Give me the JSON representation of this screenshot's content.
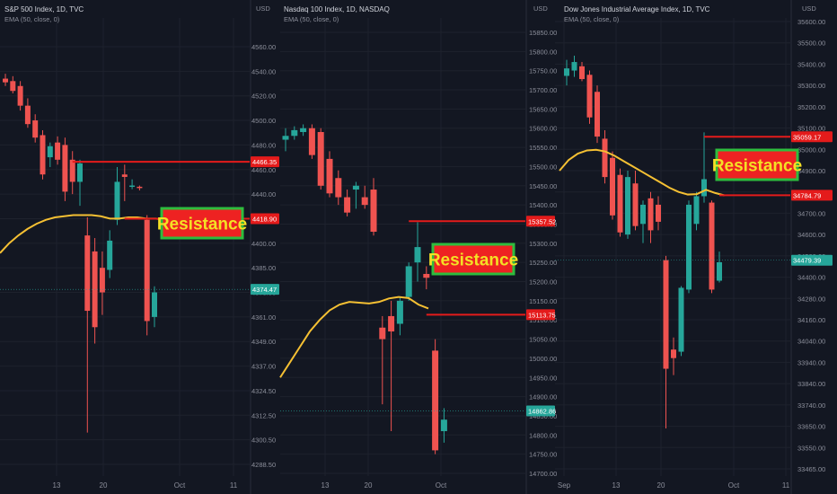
{
  "colors": {
    "background": "#131722",
    "grid": "#1e222d",
    "axis_text": "#8c8f9b",
    "header_text": "#d1d4dc",
    "up": "#26a69a",
    "down": "#ef5350",
    "ema": "#f5c033",
    "level": "#e41b1b",
    "badge_green": "#2ebd3e",
    "badge_red": "#ee2222",
    "badge_text": "#f4e025",
    "separator": "#2a2e39"
  },
  "chart_data": [
    {
      "type": "candlestick",
      "title": "S&P 500 Index, 1D, TVC",
      "indicator": "EMA (50, close, 0)",
      "currency": "USD",
      "y_ticks": [
        "4560.00",
        "4540.00",
        "4520.00",
        "4500.00",
        "4480.00",
        "4460.00",
        "4440.00",
        "4418.90",
        "4400.00",
        "4385.00",
        "4373.00",
        "4361.00",
        "4349.00",
        "4337.00",
        "4324.50",
        "4312.50",
        "4300.50",
        "4288.50"
      ],
      "x_ticks": [
        "13",
        "20",
        "Oct",
        "11"
      ],
      "candles": [
        {
          "o": 4534,
          "h": 4538,
          "l": 4528,
          "c": 4531
        },
        {
          "o": 4532,
          "h": 4536,
          "l": 4522,
          "c": 4524
        },
        {
          "o": 4528,
          "h": 4532,
          "l": 4508,
          "c": 4512
        },
        {
          "o": 4512,
          "h": 4518,
          "l": 4494,
          "c": 4497
        },
        {
          "o": 4500,
          "h": 4505,
          "l": 4482,
          "c": 4486
        },
        {
          "o": 4488,
          "h": 4492,
          "l": 4452,
          "c": 4456
        },
        {
          "o": 4470,
          "h": 4482,
          "l": 4462,
          "c": 4479
        },
        {
          "o": 4482,
          "h": 4487,
          "l": 4464,
          "c": 4468
        },
        {
          "o": 4480,
          "h": 4486,
          "l": 4434,
          "c": 4442
        },
        {
          "o": 4468,
          "h": 4475,
          "l": 4440,
          "c": 4450
        },
        {
          "o": 4450,
          "h": 4468,
          "l": 4430,
          "c": 4465
        },
        {
          "o": 4406,
          "h": 4420,
          "l": 4304,
          "c": 4364
        },
        {
          "o": 4395,
          "h": 4404,
          "l": 4348,
          "c": 4356
        },
        {
          "o": 4385,
          "h": 4395,
          "l": 4362,
          "c": 4373
        },
        {
          "o": 4384,
          "h": 4410,
          "l": 4380,
          "c": 4402
        },
        {
          "o": 4418,
          "h": 4462,
          "l": 4414,
          "c": 4450
        },
        {
          "o": 4456,
          "h": 4464,
          "l": 4434,
          "c": 4454
        },
        {
          "o": 4446,
          "h": 4452,
          "l": 4444,
          "c": 4447
        },
        {
          "o": 4446,
          "h": 4447,
          "l": 4443,
          "c": 4445
        },
        {
          "o": 4418,
          "h": 4422,
          "l": 4352,
          "c": 4359
        },
        {
          "o": 4361,
          "h": 4376,
          "l": 4356,
          "c": 4373
        }
      ],
      "ema": [
        4394,
        4400,
        4406,
        4411,
        4415,
        4418,
        4420,
        4421,
        4422,
        4422,
        4422,
        4421,
        4419,
        4419,
        4420,
        4420,
        4419,
        4419,
        4418
      ],
      "levels": [
        {
          "label": "4466.35",
          "value": 4466.35,
          "from": 9
        },
        {
          "label": "4418.90",
          "value": 4418.9,
          "from": 16
        }
      ],
      "last_price": {
        "label": "4374.47",
        "value": 4374.47
      },
      "annotation": "Resistance"
    },
    {
      "type": "candlestick",
      "title": "Nasdaq 100 Index, 1D, NASDAQ",
      "indicator": "EMA (50, close, 0)",
      "currency": "USD",
      "y_ticks": [
        "15850.00",
        "15800.00",
        "15750.00",
        "15700.00",
        "15650.00",
        "15600.00",
        "15550.00",
        "15500.00",
        "15450.00",
        "15400.00",
        "15350.00",
        "15300.00",
        "15250.00",
        "15200.00",
        "15150.00",
        "15100.00",
        "15050.00",
        "15000.00",
        "14950.00",
        "14900.00",
        "14850.00",
        "14800.00",
        "14750.00",
        "14700.00"
      ],
      "x_ticks": [
        "13",
        "20",
        "Oct"
      ],
      "candles": [
        {
          "o": 15570,
          "h": 15600,
          "l": 15540,
          "c": 15580
        },
        {
          "o": 15580,
          "h": 15605,
          "l": 15570,
          "c": 15595
        },
        {
          "o": 15590,
          "h": 15610,
          "l": 15580,
          "c": 15600
        },
        {
          "o": 15600,
          "h": 15610,
          "l": 15520,
          "c": 15530
        },
        {
          "o": 15590,
          "h": 15600,
          "l": 15440,
          "c": 15450
        },
        {
          "o": 15520,
          "h": 15540,
          "l": 15420,
          "c": 15430
        },
        {
          "o": 15470,
          "h": 15490,
          "l": 15400,
          "c": 15420
        },
        {
          "o": 15420,
          "h": 15440,
          "l": 15370,
          "c": 15380
        },
        {
          "o": 15440,
          "h": 15460,
          "l": 15390,
          "c": 15450
        },
        {
          "o": 15420,
          "h": 15450,
          "l": 15390,
          "c": 15400
        },
        {
          "o": 15440,
          "h": 15470,
          "l": 15320,
          "c": 15330
        },
        {
          "o": 15080,
          "h": 15110,
          "l": 14880,
          "c": 15050
        },
        {
          "o": 15110,
          "h": 15150,
          "l": 14810,
          "c": 15070
        },
        {
          "o": 15090,
          "h": 15160,
          "l": 15060,
          "c": 15150
        },
        {
          "o": 15160,
          "h": 15250,
          "l": 15150,
          "c": 15240
        },
        {
          "o": 15250,
          "h": 15355,
          "l": 15200,
          "c": 15290
        },
        {
          "o": 15220,
          "h": 15240,
          "l": 15180,
          "c": 15210
        },
        {
          "o": 15020,
          "h": 15050,
          "l": 14750,
          "c": 14760
        },
        {
          "o": 14810,
          "h": 14870,
          "l": 14780,
          "c": 14840
        }
      ],
      "ema": [
        14950,
        14990,
        15030,
        15070,
        15100,
        15125,
        15140,
        15147,
        15145,
        15143,
        15147,
        15156,
        15160,
        15157,
        15140,
        15130
      ],
      "levels": [
        {
          "label": "15357.52",
          "value": 15357.52,
          "from": 14
        },
        {
          "label": "15113.75",
          "value": 15113.75,
          "from": 16
        }
      ],
      "last_price": {
        "label": "14862.86",
        "value": 14862.86
      },
      "annotation": "Resistance"
    },
    {
      "type": "candlestick",
      "title": "Dow Jones Industrial Average Index, 1D, TVC",
      "indicator": "EMA (50, close, 0)",
      "currency": "USD",
      "y_ticks": [
        "35600.00",
        "35500.00",
        "35400.00",
        "35300.00",
        "35200.00",
        "35100.00",
        "35000.00",
        "34900.00",
        "34800.00",
        "34700.00",
        "34600.00",
        "34500.00",
        "34400.00",
        "34280.00",
        "34160.00",
        "34040.00",
        "33940.00",
        "33840.00",
        "33740.00",
        "33650.00",
        "33550.00",
        "33465.00"
      ],
      "x_ticks": [
        "Sep",
        "13",
        "20",
        "Oct",
        "11"
      ],
      "candles": [
        {
          "o": 35345,
          "h": 35420,
          "l": 35300,
          "c": 35380
        },
        {
          "o": 35370,
          "h": 35440,
          "l": 35340,
          "c": 35410
        },
        {
          "o": 35390,
          "h": 35410,
          "l": 35320,
          "c": 35330
        },
        {
          "o": 35350,
          "h": 35370,
          "l": 35120,
          "c": 35150
        },
        {
          "o": 35270,
          "h": 35300,
          "l": 35030,
          "c": 35060
        },
        {
          "o": 35050,
          "h": 35090,
          "l": 34840,
          "c": 34870
        },
        {
          "o": 34960,
          "h": 34990,
          "l": 34670,
          "c": 34690
        },
        {
          "o": 34880,
          "h": 34910,
          "l": 34590,
          "c": 34610
        },
        {
          "o": 34600,
          "h": 34900,
          "l": 34580,
          "c": 34870
        },
        {
          "o": 34840,
          "h": 34900,
          "l": 34620,
          "c": 34640
        },
        {
          "o": 34650,
          "h": 34760,
          "l": 34560,
          "c": 34740
        },
        {
          "o": 34770,
          "h": 34800,
          "l": 34560,
          "c": 34620
        },
        {
          "o": 34740,
          "h": 34780,
          "l": 34620,
          "c": 34660
        },
        {
          "o": 34480,
          "h": 34500,
          "l": 33640,
          "c": 33910
        },
        {
          "o": 34000,
          "h": 34060,
          "l": 33880,
          "c": 33960
        },
        {
          "o": 33990,
          "h": 34350,
          "l": 33970,
          "c": 34340
        },
        {
          "o": 34330,
          "h": 34760,
          "l": 34310,
          "c": 34740
        },
        {
          "o": 34650,
          "h": 34800,
          "l": 34620,
          "c": 34780
        },
        {
          "o": 34780,
          "h": 35080,
          "l": 34750,
          "c": 34860
        },
        {
          "o": 34750,
          "h": 34760,
          "l": 34310,
          "c": 34330
        },
        {
          "o": 34380,
          "h": 34520,
          "l": 34370,
          "c": 34470
        }
      ],
      "ema": [
        34900,
        34950,
        34980,
        34995,
        34998,
        34990,
        34970,
        34945,
        34920,
        34895,
        34870,
        34845,
        34820,
        34800,
        34788,
        34790,
        34810,
        34795,
        34784
      ],
      "levels": [
        {
          "label": "35059.17",
          "value": 35059.17,
          "from": 18
        },
        {
          "label": "34784.79",
          "value": 34784.79,
          "from": 20
        }
      ],
      "last_price": {
        "label": "34479.39",
        "value": 34479.39
      },
      "annotation": "Resistance"
    }
  ]
}
